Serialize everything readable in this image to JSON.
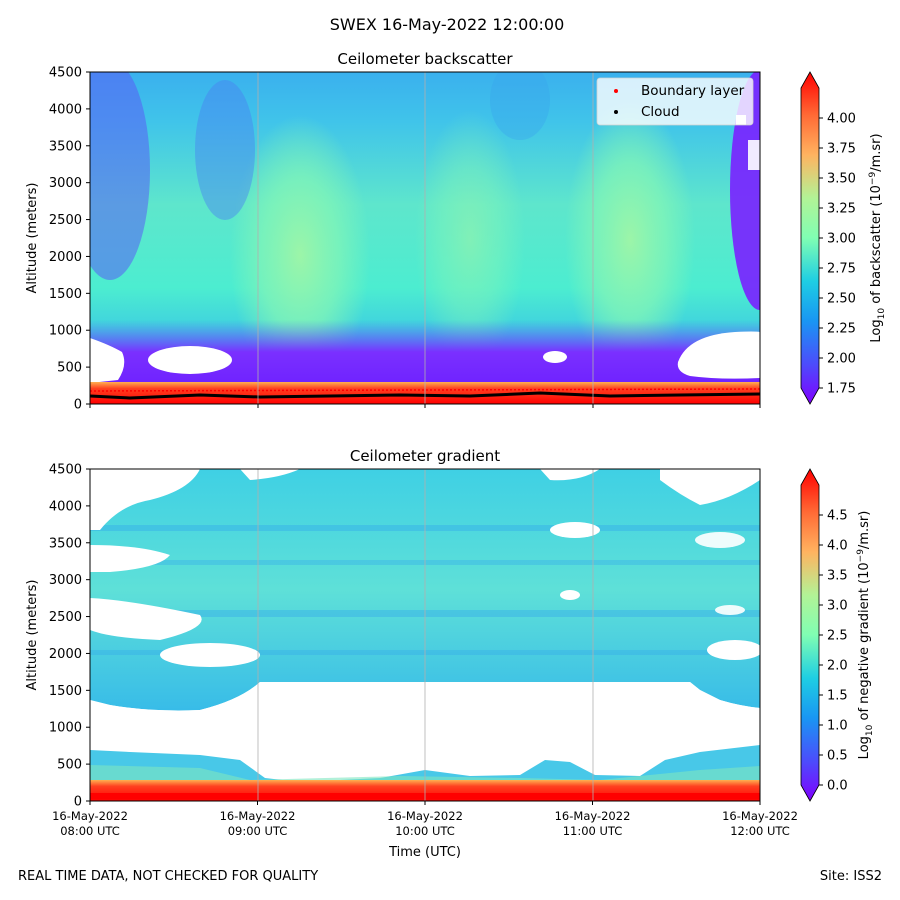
{
  "figure": {
    "suptitle": "SWEX 16-May-2022 12:00:00",
    "footer_left": "REAL TIME DATA, NOT CHECKED FOR QUALITY",
    "footer_right": "Site: ISS2"
  },
  "chart_data": [
    {
      "type": "heatmap",
      "title": "Ceilometer backscatter",
      "ylabel": "Altitude (meters)",
      "xlabel": "",
      "ylim": [
        0,
        4500
      ],
      "yticks": [
        0,
        500,
        1000,
        1500,
        2000,
        2500,
        3000,
        3500,
        4000,
        4500
      ],
      "x_range_utc": [
        "08:00",
        "12:00"
      ],
      "colorbar": {
        "label": "Log10 of backscatter (10⁻⁹/m.sr)",
        "label_prefix": "Log",
        "label_sub": "10",
        "label_suffix": " of backscatter (10",
        "label_exp": "−9",
        "label_end": "/m.sr)",
        "range": [
          1.75,
          4.25
        ],
        "ticks": [
          "1.75",
          "2.00",
          "2.25",
          "2.50",
          "2.75",
          "3.00",
          "3.25",
          "3.50",
          "3.75",
          "4.00"
        ],
        "extend": "both"
      },
      "legend": {
        "placement": "top-right",
        "entries": [
          {
            "label": "Boundary layer",
            "color": "#ff0000"
          },
          {
            "label": "Cloud",
            "color": "#000000"
          }
        ]
      },
      "grid_x": true,
      "notes": "Elevated backscatter (log10 ~2.5-3.0) fills 1000-4500 m, strongest near 09:00-09:40 and 11:00-11:40 at ~1500-2000 m; low-backscatter purple layer below ~1000 m with white gaps around 600 m; saturated red near-surface layer below ~200 m."
    },
    {
      "type": "heatmap",
      "title": "Ceilometer gradient",
      "ylabel": "Altitude (meters)",
      "xlabel": "Time (UTC)",
      "ylim": [
        0,
        4500
      ],
      "yticks": [
        0,
        500,
        1000,
        1500,
        2000,
        2500,
        3000,
        3500,
        4000,
        4500
      ],
      "xticks": [
        {
          "date": "16-May-2022",
          "time": "08:00 UTC"
        },
        {
          "date": "16-May-2022",
          "time": "09:00 UTC"
        },
        {
          "date": "16-May-2022",
          "time": "10:00 UTC"
        },
        {
          "date": "16-May-2022",
          "time": "11:00 UTC"
        },
        {
          "date": "16-May-2022",
          "time": "12:00 UTC"
        }
      ],
      "colorbar": {
        "label": "Log10 of negative gradient (10⁻⁹/m.sr)",
        "label_prefix": "Log",
        "label_sub": "10",
        "label_suffix": " of negative gradient (10",
        "label_exp": "−9",
        "label_end": "/m.sr)",
        "range": [
          0.0,
          5.0
        ],
        "ticks": [
          "0.0",
          "0.5",
          "1.0",
          "1.5",
          "2.0",
          "2.5",
          "3.0",
          "3.5",
          "4.0",
          "4.5"
        ],
        "extend": "both"
      },
      "grid_x": true,
      "notes": "Negative gradient mostly ~1.5-2.0 above 1300-1700 m with scattered white gaps; large white (no data) region ~300-1700 m; high gradient (red, >4) below ~250 m."
    }
  ]
}
